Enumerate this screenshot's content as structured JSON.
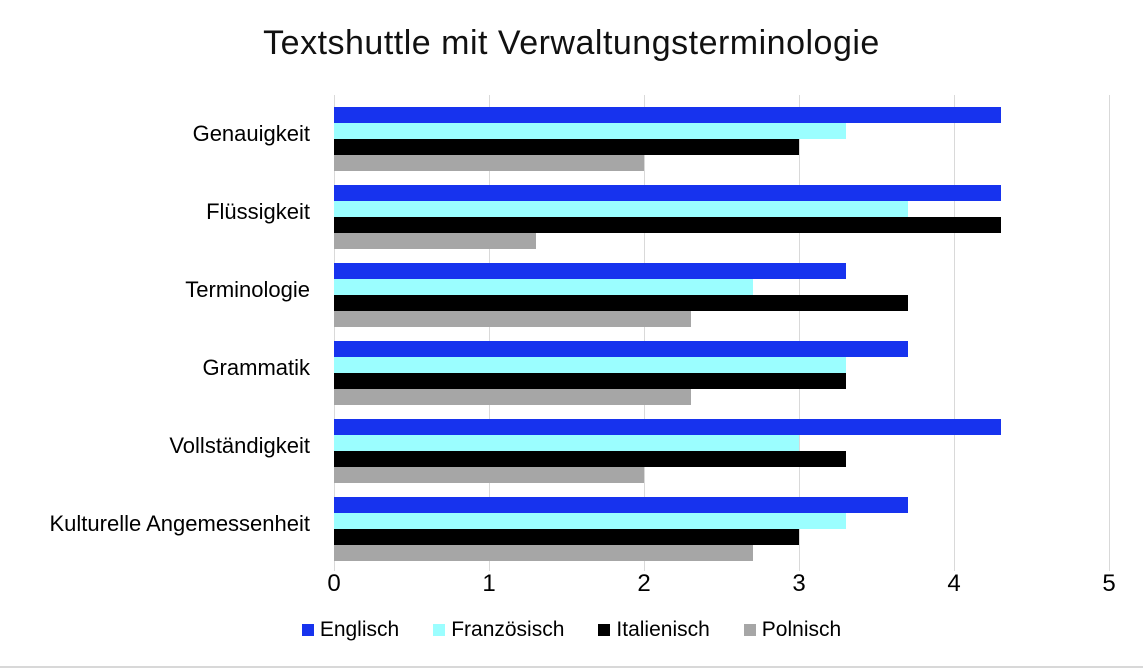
{
  "chart_data": {
    "type": "bar",
    "orientation": "horizontal",
    "title": "Textshuttle mit Verwaltungsterminologie",
    "categories": [
      "Genauigkeit",
      "Flüssigkeit",
      "Terminologie",
      "Grammatik",
      "Vollständigkeit",
      "Kulturelle Angemessenheit"
    ],
    "series": [
      {
        "name": "Englisch",
        "color": "#1733EE",
        "values": [
          4.3,
          4.3,
          3.3,
          3.7,
          4.3,
          3.7
        ]
      },
      {
        "name": "Französisch",
        "color": "#9BFEFF",
        "values": [
          3.3,
          3.7,
          2.7,
          3.3,
          3.0,
          3.3
        ]
      },
      {
        "name": "Italienisch",
        "color": "#000000",
        "values": [
          3.0,
          4.3,
          3.7,
          3.3,
          3.3,
          3.0
        ]
      },
      {
        "name": "Polnisch",
        "color": "#A6A6A6",
        "values": [
          2.0,
          1.3,
          2.3,
          2.3,
          2.0,
          2.7
        ]
      }
    ],
    "xlabel": "",
    "ylabel": "",
    "xlim": [
      0,
      5
    ],
    "xticks": [
      "0",
      "1",
      "2",
      "3",
      "4",
      "5"
    ],
    "grid": "vertical",
    "gridline_color": "#D9D9D9",
    "legend_position": "bottom"
  }
}
